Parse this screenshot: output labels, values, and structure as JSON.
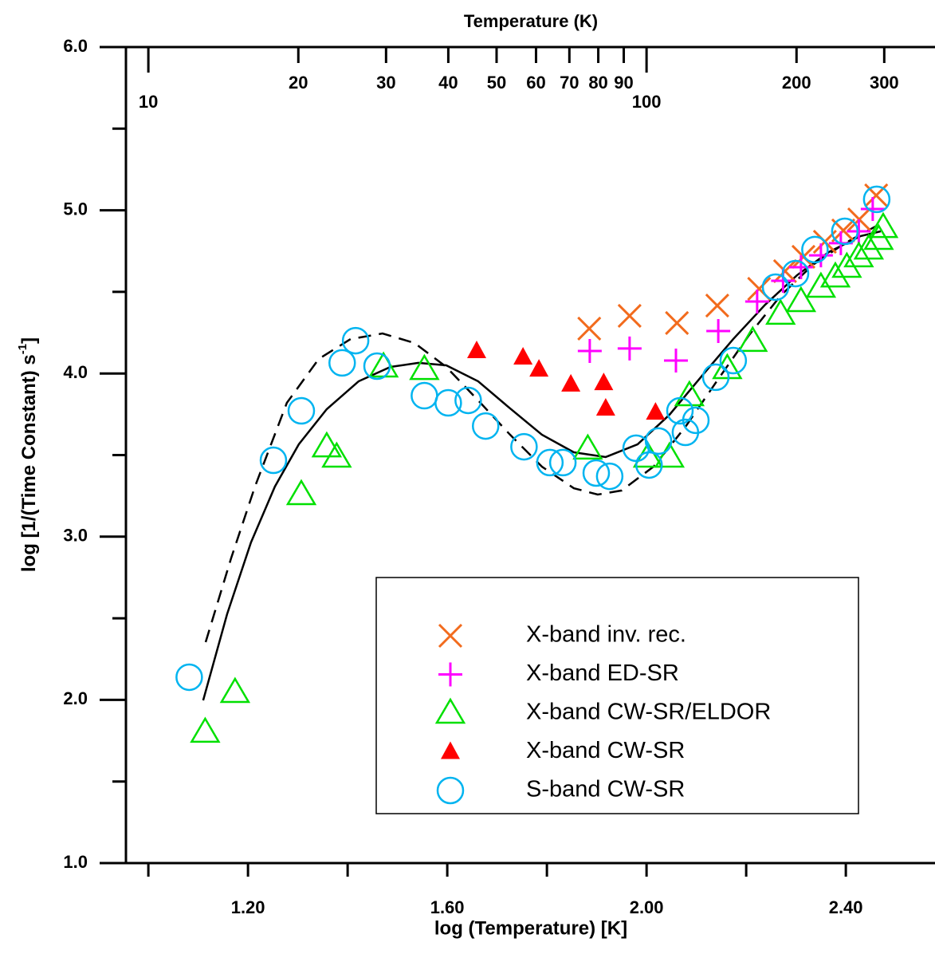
{
  "chart_data": {
    "type": "scatter",
    "title": "Temperature (K)",
    "x_label": "log (Temperature) [K]",
    "y_label": {
      "text": "log [1/(Time Constant) s",
      "superscript": "-1",
      "end": "]"
    },
    "xlim": [
      0.955,
      2.579
    ],
    "ylim": [
      1,
      6
    ],
    "xticks": [
      {
        "value": 1.2,
        "label": "1.20"
      },
      {
        "value": 1.6,
        "label": "1.60"
      },
      {
        "value": 2.0,
        "label": "2.00"
      },
      {
        "value": 2.4,
        "label": "2.40"
      }
    ],
    "x_minor_ticks": [
      1.0,
      1.4,
      1.8,
      2.2
    ],
    "yticks": [
      {
        "value": 1,
        "label": "1.0"
      },
      {
        "value": 2,
        "label": "2.0"
      },
      {
        "value": 3,
        "label": "3.0"
      },
      {
        "value": 4,
        "label": "4.0"
      },
      {
        "value": 5,
        "label": "5.0"
      },
      {
        "value": 6,
        "label": "6.0"
      }
    ],
    "y_minor_ticks": [
      1.5,
      2.5,
      3.5,
      4.5,
      5.5
    ],
    "x2_log": true,
    "x2ticks": [
      10,
      20,
      30,
      40,
      50,
      60,
      70,
      80,
      90,
      100,
      200,
      300
    ],
    "series": [
      {
        "name": "X-band inv. rec.",
        "marker": "x",
        "color": "#f26b1d",
        "x": [
          1.885,
          1.966,
          2.061,
          2.142,
          2.226,
          2.278,
          2.315,
          2.358,
          2.395,
          2.427,
          2.461
        ],
        "values": [
          4.275,
          4.353,
          4.309,
          4.416,
          4.519,
          4.627,
          4.715,
          4.807,
          4.876,
          4.944,
          5.091
        ]
      },
      {
        "name": "X-band ED-SR",
        "marker": "plus",
        "color": "#ff00ff",
        "x": [
          1.886,
          1.966,
          2.059,
          2.144,
          2.222,
          2.274,
          2.31,
          2.35,
          2.39,
          2.426,
          2.454
        ],
        "values": [
          4.138,
          4.153,
          4.079,
          4.26,
          4.441,
          4.568,
          4.651,
          4.724,
          4.798,
          4.871,
          5.008
        ]
      },
      {
        "name": "X-band CW-SR/ELDOR",
        "marker": "triangle",
        "color": "#00e000",
        "x": [
          1.114,
          1.174,
          1.307,
          1.358,
          1.378,
          1.472,
          1.554,
          1.882,
          2.003,
          2.046,
          2.086,
          2.162,
          2.213,
          2.269,
          2.31,
          2.35,
          2.379,
          2.402,
          2.426,
          2.446,
          2.466,
          2.475
        ],
        "values": [
          1.802,
          2.046,
          3.258,
          3.551,
          3.488,
          4.04,
          4.025,
          3.537,
          3.488,
          3.488,
          3.864,
          4.03,
          4.197,
          4.363,
          4.441,
          4.529,
          4.592,
          4.651,
          4.715,
          4.763,
          4.822,
          4.895
        ]
      },
      {
        "name": "X-band CW-SR",
        "marker": "triangle-filled",
        "color": "#ff0000",
        "x": [
          1.659,
          1.752,
          1.784,
          1.848,
          1.914,
          1.918,
          2.018
        ],
        "values": [
          4.138,
          4.099,
          4.025,
          3.933,
          3.942,
          3.786,
          3.761
        ]
      },
      {
        "name": "S-band CW-SR",
        "marker": "circle",
        "color": "#00b4f0",
        "x": [
          1.082,
          1.251,
          1.307,
          1.389,
          1.416,
          1.459,
          1.554,
          1.602,
          1.642,
          1.677,
          1.754,
          1.806,
          1.832,
          1.899,
          1.926,
          1.979,
          2.005,
          2.024,
          2.067,
          2.078,
          2.099,
          2.139,
          2.174,
          2.259,
          2.299,
          2.338,
          2.398,
          2.462
        ],
        "values": [
          2.139,
          3.468,
          3.771,
          4.065,
          4.201,
          4.045,
          3.864,
          3.82,
          3.835,
          3.678,
          3.551,
          3.454,
          3.454,
          3.39,
          3.37,
          3.542,
          3.439,
          3.586,
          3.771,
          3.639,
          3.713,
          3.977,
          4.079,
          4.529,
          4.612,
          4.759,
          4.871,
          5.067
        ]
      }
    ],
    "lines": [
      {
        "style": "solid",
        "color": "#000000",
        "x": [
          1.11,
          1.158,
          1.206,
          1.254,
          1.302,
          1.358,
          1.422,
          1.486,
          1.542,
          1.598,
          1.662,
          1.726,
          1.79,
          1.854,
          1.918,
          1.982,
          2.046,
          2.11,
          2.174,
          2.238,
          2.302,
          2.366,
          2.43,
          2.47
        ],
        "values": [
          1.997,
          2.525,
          2.965,
          3.307,
          3.566,
          3.781,
          3.952,
          4.04,
          4.065,
          4.05,
          3.952,
          3.786,
          3.625,
          3.517,
          3.488,
          3.566,
          3.747,
          3.981,
          4.211,
          4.421,
          4.602,
          4.744,
          4.842,
          4.871
        ]
      },
      {
        "style": "dashed",
        "color": "#000000",
        "x": [
          1.115,
          1.166,
          1.214,
          1.278,
          1.342,
          1.406,
          1.47,
          1.534,
          1.598,
          1.662,
          1.726,
          1.79,
          1.854,
          1.902,
          1.95,
          2.014,
          2.078,
          2.142,
          2.206,
          2.27,
          2.334,
          2.398,
          2.462
        ],
        "values": [
          2.354,
          2.867,
          3.307,
          3.82,
          4.089,
          4.211,
          4.245,
          4.187,
          4.04,
          3.835,
          3.625,
          3.429,
          3.297,
          3.258,
          3.283,
          3.429,
          3.673,
          3.957,
          4.236,
          4.48,
          4.666,
          4.798,
          4.905
        ]
      }
    ]
  }
}
